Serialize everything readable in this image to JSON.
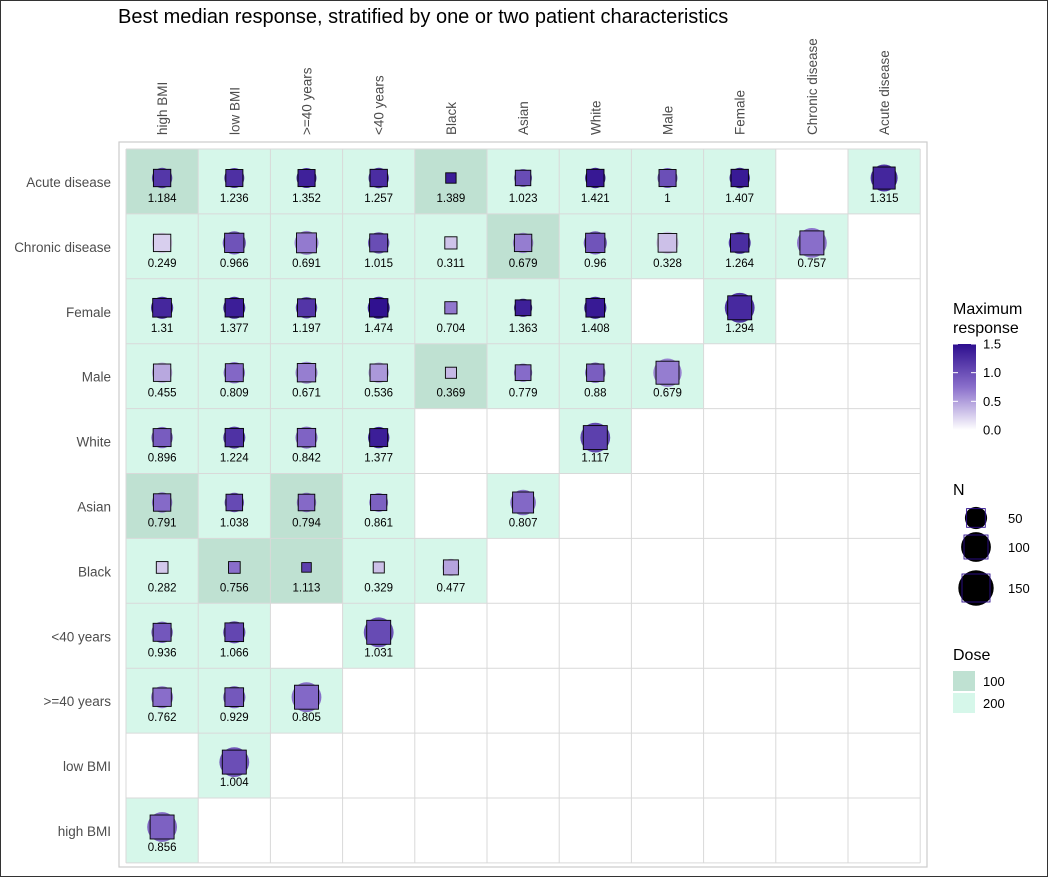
{
  "chart_data": {
    "type": "heatmap",
    "title": "Best median response, stratified by one or two patient characteristics",
    "columns": [
      "high BMI",
      "low BMI",
      ">=40 years",
      "<40 years",
      "Black",
      "Asian",
      "White",
      "Male",
      "Female",
      "Chronic disease",
      "Acute disease"
    ],
    "rows": [
      "Acute disease",
      "Chronic disease",
      "Female",
      "Male",
      "White",
      "Asian",
      "Black",
      "<40 years",
      ">=40 years",
      "low BMI",
      "high BMI"
    ],
    "cells": [
      {
        "row": "Acute disease",
        "col": "high BMI",
        "value": 1.184,
        "dose": 100,
        "n": 40
      },
      {
        "row": "Acute disease",
        "col": "low BMI",
        "value": 1.236,
        "dose": 200,
        "n": 38
      },
      {
        "row": "Acute disease",
        "col": ">=40 years",
        "value": 1.352,
        "dose": 200,
        "n": 38
      },
      {
        "row": "Acute disease",
        "col": "<40 years",
        "value": 1.257,
        "dose": 200,
        "n": 40
      },
      {
        "row": "Acute disease",
        "col": "Black",
        "value": 1.389,
        "dose": 100,
        "n": 6
      },
      {
        "row": "Acute disease",
        "col": "Asian",
        "value": 1.023,
        "dose": 200,
        "n": 28
      },
      {
        "row": "Acute disease",
        "col": "White",
        "value": 1.421,
        "dose": 200,
        "n": 40
      },
      {
        "row": "Acute disease",
        "col": "Male",
        "value": 1,
        "dose": 200,
        "n": 38
      },
      {
        "row": "Acute disease",
        "col": "Female",
        "value": 1.407,
        "dose": 200,
        "n": 40
      },
      {
        "row": "Acute disease",
        "col": "Acute disease",
        "value": 1.315,
        "dose": 200,
        "n": 80
      },
      {
        "row": "Chronic disease",
        "col": "high BMI",
        "value": 0.249,
        "dose": 200,
        "n": 40
      },
      {
        "row": "Chronic disease",
        "col": "low BMI",
        "value": 0.966,
        "dose": 200,
        "n": 55
      },
      {
        "row": "Chronic disease",
        "col": ">=40 years",
        "value": 0.691,
        "dose": 200,
        "n": 60
      },
      {
        "row": "Chronic disease",
        "col": "<40 years",
        "value": 1.015,
        "dose": 200,
        "n": 45
      },
      {
        "row": "Chronic disease",
        "col": "Black",
        "value": 0.311,
        "dose": 200,
        "n": 12
      },
      {
        "row": "Chronic disease",
        "col": "Asian",
        "value": 0.679,
        "dose": 100,
        "n": 40
      },
      {
        "row": "Chronic disease",
        "col": "White",
        "value": 0.96,
        "dose": 200,
        "n": 55
      },
      {
        "row": "Chronic disease",
        "col": "Male",
        "value": 0.328,
        "dose": 200,
        "n": 50
      },
      {
        "row": "Chronic disease",
        "col": "Female",
        "value": 1.264,
        "dose": 200,
        "n": 48
      },
      {
        "row": "Chronic disease",
        "col": "Chronic disease",
        "value": 0.757,
        "dose": 200,
        "n": 100
      },
      {
        "row": "Female",
        "col": "high BMI",
        "value": 1.31,
        "dose": 200,
        "n": 50
      },
      {
        "row": "Female",
        "col": "low BMI",
        "value": 1.377,
        "dose": 200,
        "n": 48
      },
      {
        "row": "Female",
        "col": ">=40 years",
        "value": 1.197,
        "dose": 200,
        "n": 45
      },
      {
        "row": "Female",
        "col": "<40 years",
        "value": 1.474,
        "dose": 200,
        "n": 48
      },
      {
        "row": "Female",
        "col": "Black",
        "value": 0.704,
        "dose": 200,
        "n": 12
      },
      {
        "row": "Female",
        "col": "Asian",
        "value": 1.363,
        "dose": 200,
        "n": 30
      },
      {
        "row": "Female",
        "col": "White",
        "value": 1.408,
        "dose": 200,
        "n": 50
      },
      {
        "row": "Female",
        "col": "Female",
        "value": 1.294,
        "dose": 200,
        "n": 100
      },
      {
        "row": "Male",
        "col": "high BMI",
        "value": 0.455,
        "dose": 200,
        "n": 40
      },
      {
        "row": "Male",
        "col": "low BMI",
        "value": 0.809,
        "dose": 200,
        "n": 45
      },
      {
        "row": "Male",
        "col": ">=40 years",
        "value": 0.671,
        "dose": 200,
        "n": 48
      },
      {
        "row": "Male",
        "col": "<40 years",
        "value": 0.536,
        "dose": 200,
        "n": 40
      },
      {
        "row": "Male",
        "col": "Black",
        "value": 0.369,
        "dose": 100,
        "n": 8
      },
      {
        "row": "Male",
        "col": "Asian",
        "value": 0.779,
        "dose": 200,
        "n": 30
      },
      {
        "row": "Male",
        "col": "White",
        "value": 0.88,
        "dose": 200,
        "n": 40
      },
      {
        "row": "Male",
        "col": "Male",
        "value": 0.679,
        "dose": 200,
        "n": 90
      },
      {
        "row": "White",
        "col": "high BMI",
        "value": 0.896,
        "dose": 200,
        "n": 45
      },
      {
        "row": "White",
        "col": "low BMI",
        "value": 1.224,
        "dose": 200,
        "n": 48
      },
      {
        "row": "White",
        "col": ">=40 years",
        "value": 0.842,
        "dose": 200,
        "n": 48
      },
      {
        "row": "White",
        "col": "<40 years",
        "value": 1.377,
        "dose": 200,
        "n": 45
      },
      {
        "row": "White",
        "col": "White",
        "value": 1.117,
        "dose": 200,
        "n": 100
      },
      {
        "row": "Asian",
        "col": "high BMI",
        "value": 0.791,
        "dose": 100,
        "n": 40
      },
      {
        "row": "Asian",
        "col": "low BMI",
        "value": 1.038,
        "dose": 200,
        "n": 35
      },
      {
        "row": "Asian",
        "col": ">=40 years",
        "value": 0.794,
        "dose": 100,
        "n": 35
      },
      {
        "row": "Asian",
        "col": "<40 years",
        "value": 0.861,
        "dose": 200,
        "n": 32
      },
      {
        "row": "Asian",
        "col": "Asian",
        "value": 0.807,
        "dose": 200,
        "n": 70
      },
      {
        "row": "Black",
        "col": "high BMI",
        "value": 0.282,
        "dose": 200,
        "n": 10
      },
      {
        "row": "Black",
        "col": "low BMI",
        "value": 0.756,
        "dose": 100,
        "n": 10
      },
      {
        "row": "Black",
        "col": ">=40 years",
        "value": 1.113,
        "dose": 100,
        "n": 4
      },
      {
        "row": "Black",
        "col": "<40 years",
        "value": 0.329,
        "dose": 200,
        "n": 8
      },
      {
        "row": "Black",
        "col": "Black",
        "value": 0.477,
        "dose": 200,
        "n": 25
      },
      {
        "row": "<40 years",
        "col": "high BMI",
        "value": 0.936,
        "dose": 200,
        "n": 45
      },
      {
        "row": "<40 years",
        "col": "low BMI",
        "value": 1.066,
        "dose": 200,
        "n": 50
      },
      {
        "row": "<40 years",
        "col": "<40 years",
        "value": 1.031,
        "dose": 200,
        "n": 100
      },
      {
        "row": ">=40 years",
        "col": "high BMI",
        "value": 0.762,
        "dose": 200,
        "n": 48
      },
      {
        "row": ">=40 years",
        "col": "low BMI",
        "value": 0.929,
        "dose": 200,
        "n": 50
      },
      {
        "row": ">=40 years",
        "col": ">=40 years",
        "value": 0.805,
        "dose": 200,
        "n": 100
      },
      {
        "row": "low BMI",
        "col": "low BMI",
        "value": 1.004,
        "dose": 200,
        "n": 100
      },
      {
        "row": "high BMI",
        "col": "high BMI",
        "value": 0.856,
        "dose": 200,
        "n": 100
      }
    ],
    "legend_response": {
      "title": "Maximum response",
      "ticks": [
        1.5,
        1.0,
        0.5,
        0.0
      ],
      "tick_labels": [
        "1.5",
        "1.0",
        "0.5",
        "0.0"
      ],
      "range": [
        0,
        1.5
      ]
    },
    "legend_n": {
      "title": "N",
      "values": [
        50,
        100,
        150
      ],
      "labels": [
        "50",
        "100",
        "150"
      ]
    },
    "legend_dose": {
      "title": "Dose",
      "values": [
        100,
        200
      ],
      "labels": [
        "100",
        "200"
      ],
      "colors": [
        "#bfe1d2",
        "#d6f7ea"
      ]
    },
    "colors": {
      "response_low": "#ffffff",
      "response_mid": "#8a6fcb",
      "response_high": "#2d0e8e",
      "grid": "#d9d9d9",
      "text": "#000000",
      "label": "#4d4d4d"
    },
    "legend_position": "right"
  }
}
